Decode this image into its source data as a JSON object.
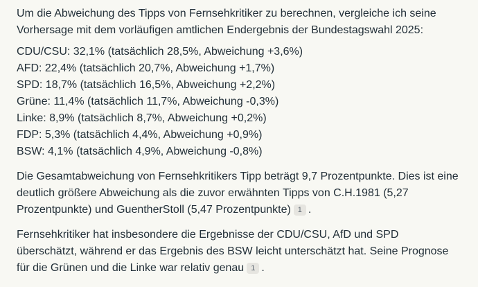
{
  "page": {
    "background_color": "#f8f8f3",
    "text_color": "#233039",
    "badge_background_color": "#e6e5e0",
    "badge_text_color": "#5c6670"
  },
  "message": {
    "intro": {
      "text": "Um die Abweichung des Tipps von Fernsehkritiker zu berechnen, vergleiche ich seine Vorhersage mit dem vorläufigen amtlichen Endergebnis der Bundestagswahl 2025:"
    },
    "results": [
      {
        "party": "CDU/CSU",
        "tip": "32,1%",
        "actual": "28,5%",
        "deviation": "+3,6%",
        "text": "CDU/CSU: 32,1% (tatsächlich 28,5%, Abweichung +3,6%)"
      },
      {
        "party": "AFD",
        "tip": "22,4%",
        "actual": "20,7%",
        "deviation": "+1,7%",
        "text": "AFD: 22,4% (tatsächlich 20,7%, Abweichung +1,7%)"
      },
      {
        "party": "SPD",
        "tip": "18,7%",
        "actual": "16,5%",
        "deviation": "+2,2%",
        "text": "SPD: 18,7% (tatsächlich 16,5%, Abweichung +2,2%)"
      },
      {
        "party": "Grüne",
        "tip": "11,4%",
        "actual": "11,7%",
        "deviation": "-0,3%",
        "text": "Grüne: 11,4% (tatsächlich 11,7%, Abweichung -0,3%)"
      },
      {
        "party": "Linke",
        "tip": "8,9%",
        "actual": "8,7%",
        "deviation": "+0,2%",
        "text": "Linke: 8,9% (tatsächlich 8,7%, Abweichung +0,2%)"
      },
      {
        "party": "FDP",
        "tip": "5,3%",
        "actual": "4,4%",
        "deviation": "+0,9%",
        "text": "FDP: 5,3% (tatsächlich 4,4%, Abweichung +0,9%)"
      },
      {
        "party": "BSW",
        "tip": "4,1%",
        "actual": "4,9%",
        "deviation": "-0,8%",
        "text": "BSW: 4,1% (tatsächlich 4,9%, Abweichung -0,8%)"
      }
    ],
    "summary": {
      "text": "Die Gesamtabweichung von Fernsehkritikers Tipp beträgt 9,7 Prozentpunkte. Dies ist eine deutlich größere Abweichung als die zuvor erwähnten Tipps von C.H.1981 (5,27 Prozentpunkte) und GuentherStoll (5,47 Prozentpunkte)",
      "citation_label": "1",
      "suffix": "."
    },
    "conclusion": {
      "text": "Fernsehkritiker hat insbesondere die Ergebnisse der CDU/CSU, AfD und SPD überschätzt, während er das Ergebnis des BSW leicht unterschätzt hat. Seine Prognose für die Grünen und die Linke war relativ genau",
      "citation_label": "1",
      "suffix": "."
    }
  }
}
